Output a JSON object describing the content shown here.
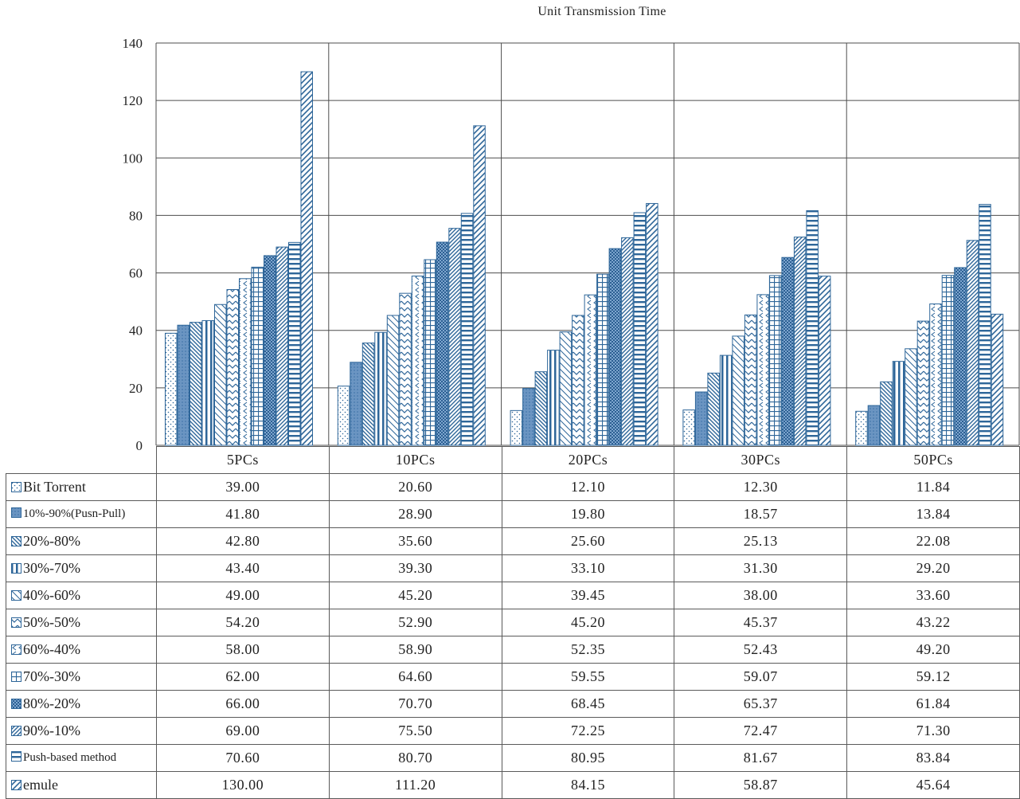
{
  "chart_data": {
    "type": "bar",
    "title": "Unit Transmission Time",
    "categories": [
      "5PCs",
      "10PCs",
      "20PCs",
      "30PCs",
      "50PCs"
    ],
    "ylim": [
      0,
      140
    ],
    "yticks": [
      0,
      20,
      40,
      60,
      80,
      100,
      120,
      140
    ],
    "grid": true,
    "legend": "data-table",
    "series": [
      {
        "name": "Bit Torrent",
        "pattern": "dots",
        "values": [
          "39.00",
          "20.60",
          "12.10",
          "12.30",
          "11.84"
        ]
      },
      {
        "name": "10%-90%(Pusn-Pull)",
        "pattern": "solid",
        "values": [
          "41.80",
          "28.90",
          "19.80",
          "18.57",
          "13.84"
        ]
      },
      {
        "name": "20%-80%",
        "pattern": "diag-down",
        "values": [
          "42.80",
          "35.60",
          "25.60",
          "25.13",
          "22.08"
        ]
      },
      {
        "name": "30%-70%",
        "pattern": "vertical",
        "values": [
          "43.40",
          "39.30",
          "33.10",
          "31.30",
          "29.20"
        ]
      },
      {
        "name": "40%-60%",
        "pattern": "diag-down-wide",
        "values": [
          "49.00",
          "45.20",
          "39.45",
          "38.00",
          "33.60"
        ]
      },
      {
        "name": "50%-50%",
        "pattern": "zigzag",
        "values": [
          "54.20",
          "52.90",
          "45.20",
          "45.37",
          "43.22"
        ]
      },
      {
        "name": "60%-40%",
        "pattern": "chevron",
        "values": [
          "58.00",
          "58.90",
          "52.35",
          "52.43",
          "49.20"
        ]
      },
      {
        "name": "70%-30%",
        "pattern": "grid",
        "values": [
          "62.00",
          "64.60",
          "59.55",
          "59.07",
          "59.12"
        ]
      },
      {
        "name": "80%-20%",
        "pattern": "checker",
        "values": [
          "66.00",
          "70.70",
          "68.45",
          "65.37",
          "61.84"
        ]
      },
      {
        "name": "90%-10%",
        "pattern": "diag-up",
        "values": [
          "69.00",
          "75.50",
          "72.25",
          "72.47",
          "71.30"
        ]
      },
      {
        "name": "Push-based method",
        "pattern": "horizontal",
        "values": [
          "70.60",
          "80.70",
          "80.95",
          "81.67",
          "83.84"
        ]
      },
      {
        "name": "emule",
        "pattern": "diag-up-wide",
        "values": [
          "130.00",
          "111.20",
          "84.15",
          "58.87",
          "45.64"
        ]
      }
    ]
  },
  "colors": {
    "bar_stroke": "#2e6699",
    "bar_fill_light": "#dbe9f6",
    "bar_fill_dark": "#4a7fb5",
    "grid": "#4d4d4d"
  }
}
